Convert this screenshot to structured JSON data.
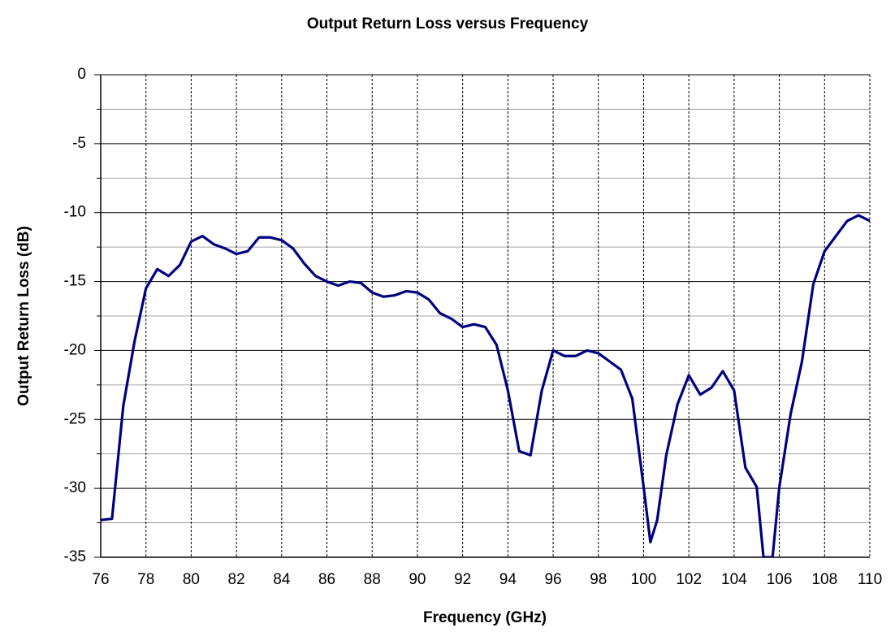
{
  "chart_data": {
    "type": "line",
    "title": "Output Return Loss versus Frequency",
    "xlabel": "Frequency (GHz)",
    "ylabel": "Output Return Loss (dB)",
    "xlim": [
      76,
      110
    ],
    "ylim": [
      -35,
      0
    ],
    "xticks": [
      76,
      78,
      80,
      82,
      84,
      86,
      88,
      90,
      92,
      94,
      96,
      98,
      100,
      102,
      104,
      106,
      108,
      110
    ],
    "yticks": [
      -35,
      -30,
      -25,
      -20,
      -15,
      -10,
      -5,
      0
    ],
    "grid": true,
    "x": [
      76,
      76.5,
      77,
      77.5,
      78,
      78.5,
      79,
      79.5,
      80,
      80.5,
      81,
      81.5,
      82,
      82.5,
      83,
      83.5,
      84,
      84.5,
      85,
      85.5,
      86,
      86.5,
      87,
      87.5,
      88,
      88.5,
      89,
      89.5,
      90,
      90.5,
      91,
      91.5,
      92,
      92.5,
      93,
      93.5,
      94,
      94.5,
      95,
      95.5,
      96,
      96.5,
      97,
      97.5,
      98,
      98.5,
      99,
      99.5,
      100,
      100.3,
      100.6,
      101,
      101.5,
      102,
      102.5,
      103,
      103.5,
      104,
      104.5,
      105,
      105.3,
      105.7,
      106,
      106.5,
      107,
      107.5,
      108,
      108.5,
      109,
      109.5,
      110
    ],
    "series": [
      {
        "name": "Output Return Loss",
        "color": "#000080",
        "values": [
          -32.3,
          -32.2,
          -24,
          -19.3,
          -15.5,
          -14.1,
          -14.6,
          -13.8,
          -12.1,
          -11.7,
          -12.3,
          -12.6,
          -13.0,
          -12.8,
          -11.8,
          -11.8,
          -12,
          -12.6,
          -13.7,
          -14.6,
          -15,
          -15.3,
          -15,
          -15.1,
          -15.8,
          -16.1,
          -16,
          -15.7,
          -15.8,
          -16.3,
          -17.3,
          -17.7,
          -18.3,
          -18.1,
          -18.3,
          -19.6,
          -22.9,
          -27.3,
          -27.6,
          -22.9,
          -20,
          -20.4,
          -20.4,
          -20,
          -20.2,
          -20.8,
          -21.4,
          -23.5,
          -29.9,
          -33.9,
          -32.3,
          -27.6,
          -23.9,
          -21.8,
          -23.2,
          -22.7,
          -21.5,
          -22.9,
          -28.5,
          -29.9,
          -35,
          -35,
          -29.9,
          -24.6,
          -20.8,
          -15.2,
          -12.8,
          -11.7,
          -10.6,
          -10.2,
          -10.6
        ]
      }
    ]
  }
}
